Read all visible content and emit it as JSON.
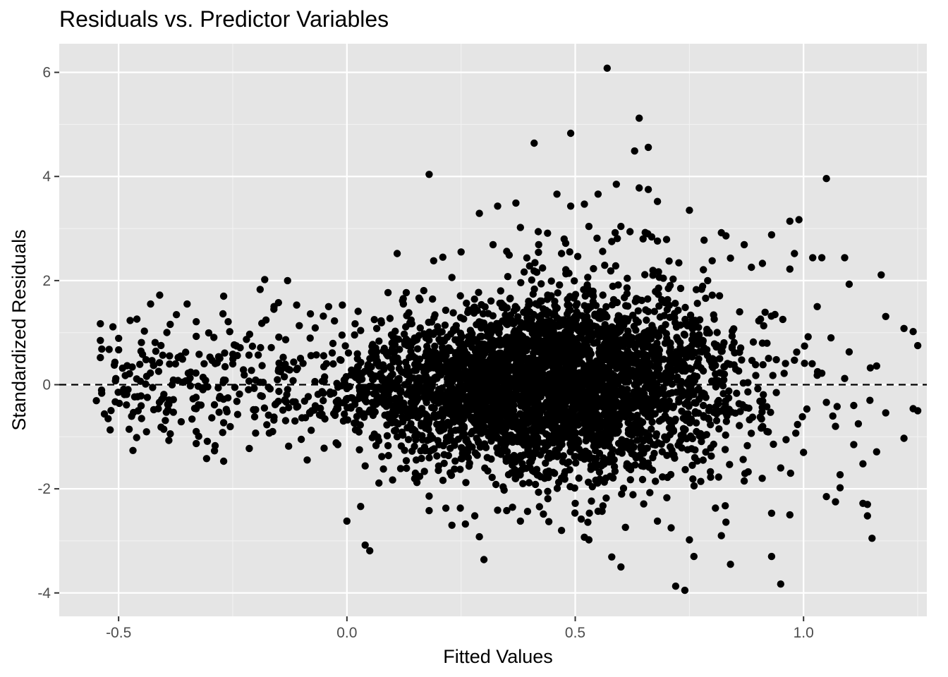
{
  "chart_data": {
    "type": "scatter",
    "title": "Residuals vs. Predictor Variables",
    "xlabel": "Fitted Values",
    "ylabel": "Standardized Residuals",
    "xlim": [
      -0.63,
      1.27
    ],
    "ylim": [
      -4.45,
      6.55
    ],
    "x_ticks": [
      -0.5,
      0.0,
      0.5,
      1.0
    ],
    "x_tick_labels": [
      "-0.5",
      "0.0",
      "0.5",
      "1.0"
    ],
    "y_ticks": [
      -4,
      -2,
      0,
      2,
      4,
      6
    ],
    "y_tick_labels": [
      "-4",
      "-2",
      "0",
      "2",
      "4",
      "6"
    ],
    "reference_line": {
      "y": 0,
      "style": "dashed"
    },
    "grid": true,
    "background": "#e5e5e5",
    "point_color": "#000000",
    "approx_point_count": 4000,
    "bulk_distribution": "dense cloud centered near x=0.45, y=0; spread widens with x up to about 0.8",
    "points": [
      [
        0.57,
        6.08
      ],
      [
        0.64,
        5.12
      ],
      [
        0.49,
        4.83
      ],
      [
        0.41,
        4.64
      ],
      [
        0.66,
        4.56
      ],
      [
        0.63,
        4.49
      ],
      [
        0.18,
        4.04
      ],
      [
        1.05,
        3.96
      ],
      [
        0.59,
        3.85
      ],
      [
        0.64,
        3.78
      ],
      [
        0.66,
        3.75
      ],
      [
        0.46,
        3.66
      ],
      [
        0.55,
        3.66
      ],
      [
        0.68,
        3.52
      ],
      [
        0.37,
        3.49
      ],
      [
        0.52,
        3.47
      ],
      [
        0.49,
        3.43
      ],
      [
        0.33,
        3.43
      ],
      [
        0.75,
        3.35
      ],
      [
        0.29,
        3.29
      ],
      [
        0.6,
        3.04
      ],
      [
        0.53,
        3.04
      ],
      [
        0.38,
        3.02
      ],
      [
        0.97,
        3.14
      ],
      [
        0.99,
        3.17
      ],
      [
        0.11,
        2.52
      ],
      [
        0.19,
        2.38
      ],
      [
        0.82,
        2.92
      ],
      [
        0.83,
        2.86
      ],
      [
        0.93,
        2.88
      ],
      [
        -0.18,
        2.02
      ],
      [
        -0.13,
        2.0
      ],
      [
        -0.41,
        1.72
      ],
      [
        -0.27,
        1.7
      ],
      [
        -0.43,
        1.55
      ],
      [
        -0.54,
        1.17
      ],
      [
        -0.5,
        0.89
      ],
      [
        -0.54,
        0.85
      ],
      [
        -0.5,
        0.67
      ],
      [
        -0.54,
        0.52
      ],
      [
        -0.46,
        1.26
      ],
      [
        -0.45,
        0.81
      ],
      [
        -0.42,
        0.81
      ],
      [
        -0.44,
        0.48
      ],
      [
        -0.35,
        1.55
      ],
      [
        -0.33,
        1.21
      ],
      [
        -0.37,
        0.08
      ],
      [
        -0.39,
        -0.35
      ],
      [
        -0.38,
        -0.53
      ],
      [
        -0.39,
        -1.07
      ],
      [
        -0.33,
        -0.46
      ],
      [
        -0.33,
        -0.9
      ],
      [
        -0.33,
        -1.13
      ],
      [
        -0.28,
        -0.53
      ],
      [
        -0.27,
        -1.47
      ],
      [
        -0.27,
        -0.73
      ],
      [
        -0.29,
        -1.27
      ],
      [
        -0.2,
        -0.93
      ],
      [
        -0.17,
        -0.93
      ],
      [
        -0.16,
        -0.68
      ],
      [
        -0.1,
        -1.05
      ],
      [
        -0.05,
        -1.22
      ],
      [
        -0.02,
        -1.15
      ],
      [
        0.0,
        -2.62
      ],
      [
        0.03,
        -2.34
      ],
      [
        0.04,
        -3.08
      ],
      [
        0.05,
        -3.19
      ],
      [
        0.07,
        -1.89
      ],
      [
        0.1,
        -1.83
      ],
      [
        0.18,
        -2.14
      ],
      [
        0.18,
        -2.42
      ],
      [
        0.23,
        -2.7
      ],
      [
        0.28,
        -2.52
      ],
      [
        0.29,
        -2.92
      ],
      [
        0.3,
        -3.36
      ],
      [
        0.33,
        -2.41
      ],
      [
        0.35,
        -2.42
      ],
      [
        0.38,
        -2.62
      ],
      [
        0.44,
        -2.19
      ],
      [
        0.47,
        -2.8
      ],
      [
        0.5,
        -2.28
      ],
      [
        0.52,
        -2.93
      ],
      [
        0.53,
        -2.98
      ],
      [
        0.55,
        -2.43
      ],
      [
        0.58,
        -3.31
      ],
      [
        0.6,
        -3.5
      ],
      [
        0.61,
        -2.74
      ],
      [
        0.65,
        -2.29
      ],
      [
        0.68,
        -2.62
      ],
      [
        0.71,
        -2.75
      ],
      [
        0.72,
        -3.87
      ],
      [
        0.74,
        -3.95
      ],
      [
        0.75,
        -2.98
      ],
      [
        0.76,
        -3.3
      ],
      [
        0.82,
        -2.9
      ],
      [
        0.83,
        -2.64
      ],
      [
        0.84,
        -3.45
      ],
      [
        0.87,
        -1.85
      ],
      [
        0.93,
        -2.47
      ],
      [
        0.93,
        -3.3
      ],
      [
        0.95,
        -3.83
      ],
      [
        0.97,
        -2.5
      ],
      [
        1.05,
        -2.15
      ],
      [
        1.07,
        -2.25
      ],
      [
        1.08,
        -1.98
      ],
      [
        1.13,
        -2.28
      ],
      [
        1.14,
        -2.52
      ],
      [
        1.15,
        -2.95
      ],
      [
        1.14,
        -2.3
      ],
      [
        1.17,
        2.11
      ],
      [
        1.18,
        1.31
      ],
      [
        1.18,
        -0.54
      ],
      [
        1.22,
        1.08
      ],
      [
        1.24,
        1.02
      ],
      [
        1.25,
        0.75
      ],
      [
        1.24,
        -0.46
      ],
      [
        1.25,
        -0.5
      ],
      [
        1.22,
        -1.03
      ],
      [
        1.16,
        -1.29
      ],
      [
        1.16,
        0.36
      ],
      [
        1.12,
        -0.75
      ],
      [
        1.1,
        1.93
      ],
      [
        1.09,
        2.44
      ],
      [
        1.04,
        2.44
      ],
      [
        1.02,
        2.44
      ],
      [
        0.98,
        2.52
      ],
      [
        0.97,
        2.22
      ],
      [
        0.91,
        2.33
      ],
      [
        0.87,
        2.69
      ],
      [
        0.84,
        2.43
      ],
      [
        0.8,
        2.38
      ],
      [
        0.79,
        2.0
      ],
      [
        0.7,
        2.79
      ],
      [
        0.68,
        2.76
      ],
      [
        0.62,
        2.94
      ],
      [
        0.58,
        2.75
      ],
      [
        0.56,
        2.56
      ],
      [
        0.47,
        2.52
      ],
      [
        0.42,
        2.69
      ],
      [
        0.4,
        2.28
      ],
      [
        0.35,
        2.56
      ],
      [
        0.32,
        2.69
      ],
      [
        0.25,
        2.55
      ],
      [
        0.23,
        2.06
      ],
      [
        0.21,
        2.45
      ],
      [
        0.16,
        1.63
      ],
      [
        0.13,
        1.77
      ],
      [
        0.09,
        1.77
      ],
      [
        0.06,
        1.25
      ],
      [
        0.03,
        1.04
      ],
      [
        -0.01,
        1.53
      ],
      [
        -0.04,
        1.5
      ],
      [
        -0.08,
        1.36
      ],
      [
        -0.11,
        1.53
      ],
      [
        -0.16,
        1.45
      ],
      [
        -0.19,
        1.83
      ],
      [
        -0.22,
        0.87
      ],
      [
        -0.24,
        0.56
      ],
      [
        -0.26,
        1.21
      ],
      [
        -0.3,
        0.53
      ],
      [
        -0.33,
        0.93
      ],
      [
        -0.36,
        0.49
      ],
      [
        -0.38,
        0.09
      ],
      [
        -0.31,
        0.08
      ],
      [
        -0.25,
        0.4
      ],
      [
        -0.2,
        0.09
      ],
      [
        -0.15,
        0.26
      ],
      [
        -0.11,
        0.29
      ],
      [
        -0.07,
        0.06
      ],
      [
        -0.03,
        0.4
      ],
      [
        0.01,
        0.28
      ],
      [
        0.06,
        0.55
      ],
      [
        0.1,
        0.2
      ],
      [
        0.14,
        0.64
      ],
      [
        0.19,
        0.48
      ],
      [
        -0.2,
        -0.48
      ],
      [
        -0.15,
        -0.32
      ],
      [
        -0.11,
        -0.43
      ],
      [
        -0.06,
        -0.58
      ],
      [
        -0.02,
        -0.4
      ],
      [
        0.02,
        -0.73
      ],
      [
        0.06,
        -0.95
      ],
      [
        0.09,
        -1.17
      ],
      [
        0.13,
        -1.46
      ],
      [
        0.15,
        -1.7
      ],
      [
        0.04,
        -1.56
      ],
      [
        0.08,
        -1.62
      ],
      [
        0.11,
        -1.0
      ],
      [
        0.14,
        -0.75
      ],
      [
        0.17,
        -1.2
      ],
      [
        0.98,
        0.47
      ],
      [
        1.01,
        0.92
      ],
      [
        1.03,
        0.18
      ],
      [
        1.05,
        -0.34
      ],
      [
        1.07,
        -0.8
      ],
      [
        1.09,
        0.12
      ],
      [
        1.11,
        -0.4
      ],
      [
        1.06,
        0.9
      ],
      [
        1.03,
        1.5
      ],
      [
        1.0,
        -1.3
      ],
      [
        0.95,
        -1.6
      ],
      [
        0.92,
        -0.9
      ],
      [
        0.89,
        0.82
      ],
      [
        0.86,
        1.4
      ],
      [
        0.83,
        -0.55
      ],
      [
        0.8,
        0.35
      ],
      [
        0.78,
        -1.45
      ],
      [
        0.77,
        1.1
      ],
      [
        0.74,
        -0.2
      ],
      [
        0.72,
        0.6
      ],
      [
        1.11,
        -1.15
      ],
      [
        1.13,
        -1.52
      ],
      [
        1.08,
        -1.73
      ],
      [
        1.04,
        0.22
      ],
      [
        1.1,
        0.63
      ]
    ]
  }
}
